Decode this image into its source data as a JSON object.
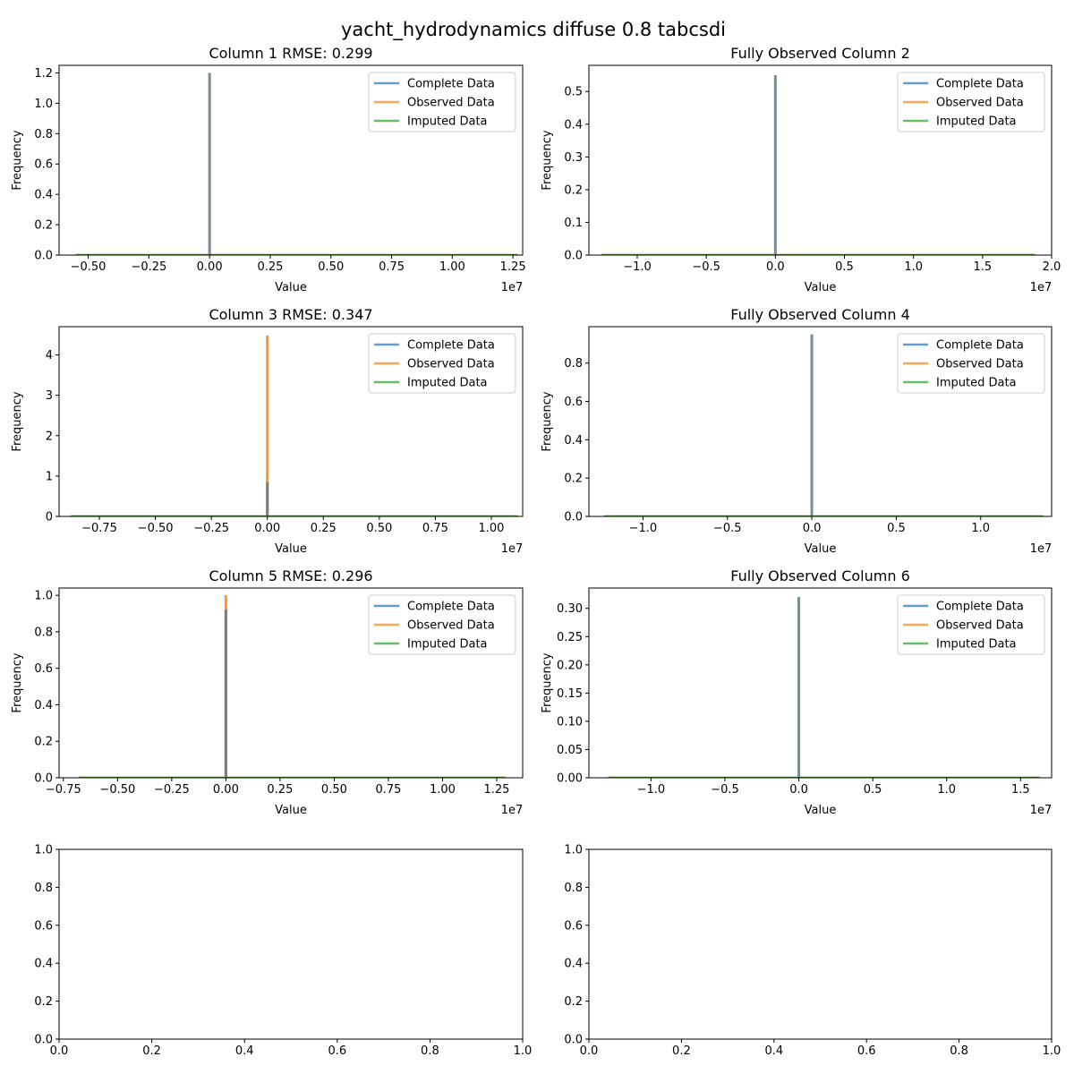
{
  "figure": {
    "suptitle": "yacht_hydrodynamics diffuse 0.8 tabcsdi"
  },
  "colors": {
    "complete": "#1f77b4",
    "observed": "#ff7f0e",
    "imputed": "#2ca02c",
    "overlap": "#5b7b86"
  },
  "chart_data": [
    {
      "type": "bar",
      "title": "Column 1 RMSE: 0.299",
      "xlabel": "Value",
      "ylabel": "Frequency",
      "x_offset_label": "1e7",
      "xlim": [
        -0.62,
        1.29
      ],
      "ylim": [
        0,
        1.25
      ],
      "xticks": [
        -0.5,
        -0.25,
        0,
        0.25,
        0.5,
        0.75,
        1.0,
        1.25
      ],
      "xtick_labels": [
        "−0.50",
        "−0.25",
        "0.00",
        "0.25",
        "0.50",
        "0.75",
        "1.00",
        "1.25"
      ],
      "yticks": [
        0,
        0.2,
        0.4,
        0.6,
        0.8,
        1.0,
        1.2
      ],
      "ytick_labels": [
        "0.0",
        "0.2",
        "0.4",
        "0.6",
        "0.8",
        "1.0",
        "1.2"
      ],
      "baseline": [
        -0.55,
        1.27
      ],
      "legend": {
        "position": "top-right",
        "entries": [
          "Complete Data",
          "Observed Data",
          "Imputed Data"
        ]
      },
      "series": [
        {
          "name": "Complete Data",
          "x": 0.0,
          "value": 1.2
        },
        {
          "name": "Observed Data",
          "x": 0.0,
          "value": 1.2
        },
        {
          "name": "Imputed Data",
          "x": 0.0,
          "value": 0.0
        }
      ]
    },
    {
      "type": "bar",
      "title": "Fully Observed Column 2",
      "xlabel": "Value",
      "ylabel": "Frequency",
      "x_offset_label": "1e7",
      "xlim": [
        -1.35,
        2.0
      ],
      "ylim": [
        0,
        0.58
      ],
      "xticks": [
        -1.0,
        -0.5,
        0,
        0.5,
        1.0,
        1.5,
        2.0
      ],
      "xtick_labels": [
        "−1.0",
        "−0.5",
        "0.0",
        "0.5",
        "1.0",
        "1.5",
        "2.0"
      ],
      "yticks": [
        0,
        0.1,
        0.2,
        0.3,
        0.4,
        0.5
      ],
      "ytick_labels": [
        "0.0",
        "0.1",
        "0.2",
        "0.3",
        "0.4",
        "0.5"
      ],
      "baseline": [
        -1.26,
        1.88
      ],
      "legend": {
        "position": "top-right",
        "entries": [
          "Complete Data",
          "Observed Data",
          "Imputed Data"
        ]
      },
      "series": [
        {
          "name": "Complete Data",
          "x": 0.0,
          "value": 0.55
        },
        {
          "name": "Observed Data",
          "x": 0.0,
          "value": 0.55
        },
        {
          "name": "Imputed Data",
          "x": 0.0,
          "value": 0.0
        }
      ]
    },
    {
      "type": "bar",
      "title": "Column 3 RMSE: 0.347",
      "xlabel": "Value",
      "ylabel": "Frequency",
      "x_offset_label": "1e7",
      "xlim": [
        -0.93,
        1.14
      ],
      "ylim": [
        0,
        4.7
      ],
      "xticks": [
        -0.75,
        -0.5,
        -0.25,
        0,
        0.25,
        0.5,
        0.75,
        1.0
      ],
      "xtick_labels": [
        "−0.75",
        "−0.50",
        "−0.25",
        "0.00",
        "0.25",
        "0.50",
        "0.75",
        "1.00"
      ],
      "yticks": [
        0,
        1,
        2,
        3,
        4
      ],
      "ytick_labels": [
        "0",
        "1",
        "2",
        "3",
        "4"
      ],
      "baseline": [
        -0.88,
        1.12
      ],
      "legend": {
        "position": "top-right",
        "entries": [
          "Complete Data",
          "Observed Data",
          "Imputed Data"
        ]
      },
      "series": [
        {
          "name": "Complete Data",
          "x": 0.0,
          "value": 0.85
        },
        {
          "name": "Observed Data",
          "x": 0.0,
          "value": 4.48
        },
        {
          "name": "Imputed Data",
          "x": 0.0,
          "value": 0.0
        }
      ]
    },
    {
      "type": "bar",
      "title": "Fully Observed Column 4",
      "xlabel": "Value",
      "ylabel": "Frequency",
      "x_offset_label": "1e7",
      "xlim": [
        -1.32,
        1.42
      ],
      "ylim": [
        0,
        0.99
      ],
      "xticks": [
        -1.0,
        -0.5,
        0,
        0.5,
        1.0
      ],
      "xtick_labels": [
        "−1.0",
        "−0.5",
        "0.0",
        "0.5",
        "1.0"
      ],
      "yticks": [
        0,
        0.2,
        0.4,
        0.6,
        0.8
      ],
      "ytick_labels": [
        "0.0",
        "0.2",
        "0.4",
        "0.6",
        "0.8"
      ],
      "baseline": [
        -1.23,
        1.37
      ],
      "legend": {
        "position": "top-right",
        "entries": [
          "Complete Data",
          "Observed Data",
          "Imputed Data"
        ]
      },
      "series": [
        {
          "name": "Complete Data",
          "x": 0.0,
          "value": 0.95
        },
        {
          "name": "Observed Data",
          "x": 0.0,
          "value": 0.95
        },
        {
          "name": "Imputed Data",
          "x": 0.0,
          "value": 0.0
        }
      ]
    },
    {
      "type": "bar",
      "title": "Column 5 RMSE: 0.296",
      "xlabel": "Value",
      "ylabel": "Frequency",
      "x_offset_label": "1e7",
      "xlim": [
        -0.77,
        1.37
      ],
      "ylim": [
        0,
        1.04
      ],
      "xticks": [
        -0.75,
        -0.5,
        -0.25,
        0,
        0.25,
        0.5,
        0.75,
        1.0,
        1.25
      ],
      "xtick_labels": [
        "−0.75",
        "−0.50",
        "−0.25",
        "0.00",
        "0.25",
        "0.50",
        "0.75",
        "1.00",
        "1.25"
      ],
      "yticks": [
        0,
        0.2,
        0.4,
        0.6,
        0.8,
        1.0
      ],
      "ytick_labels": [
        "0.0",
        "0.2",
        "0.4",
        "0.6",
        "0.8",
        "1.0"
      ],
      "baseline": [
        -0.68,
        1.29
      ],
      "legend": {
        "position": "top-right",
        "entries": [
          "Complete Data",
          "Observed Data",
          "Imputed Data"
        ]
      },
      "series": [
        {
          "name": "Complete Data",
          "x": 0.0,
          "value": 0.92
        },
        {
          "name": "Observed Data",
          "x": 0.0,
          "value": 1.0
        },
        {
          "name": "Imputed Data",
          "x": 0.0,
          "value": 0.0
        }
      ]
    },
    {
      "type": "bar",
      "title": "Fully Observed Column 6",
      "xlabel": "Value",
      "ylabel": "Frequency",
      "x_offset_label": "1e7",
      "xlim": [
        -1.42,
        1.71
      ],
      "ylim": [
        0,
        0.336
      ],
      "xticks": [
        -1.0,
        -0.5,
        0,
        0.5,
        1.0,
        1.5
      ],
      "xtick_labels": [
        "−1.0",
        "−0.5",
        "0.0",
        "0.5",
        "1.0",
        "1.5"
      ],
      "yticks": [
        0,
        0.05,
        0.1,
        0.15,
        0.2,
        0.25,
        0.3
      ],
      "ytick_labels": [
        "0.00",
        "0.05",
        "0.10",
        "0.15",
        "0.20",
        "0.25",
        "0.30"
      ],
      "baseline": [
        -1.29,
        1.63
      ],
      "legend": {
        "position": "top-right",
        "entries": [
          "Complete Data",
          "Observed Data",
          "Imputed Data"
        ]
      },
      "series": [
        {
          "name": "Complete Data",
          "x": 0.0,
          "value": 0.32
        },
        {
          "name": "Observed Data",
          "x": 0.0,
          "value": 0.32
        },
        {
          "name": "Imputed Data",
          "x": 0.0,
          "value": 0.0
        }
      ]
    },
    {
      "type": "empty",
      "xlim": [
        0,
        1
      ],
      "ylim": [
        0,
        1
      ],
      "xticks": [
        0,
        0.2,
        0.4,
        0.6,
        0.8,
        1.0
      ],
      "xtick_labels": [
        "0.0",
        "0.2",
        "0.4",
        "0.6",
        "0.8",
        "1.0"
      ],
      "yticks": [
        0,
        0.2,
        0.4,
        0.6,
        0.8,
        1.0
      ],
      "ytick_labels": [
        "0.0",
        "0.2",
        "0.4",
        "0.6",
        "0.8",
        "1.0"
      ]
    },
    {
      "type": "empty",
      "xlim": [
        0,
        1
      ],
      "ylim": [
        0,
        1
      ],
      "xticks": [
        0,
        0.2,
        0.4,
        0.6,
        0.8,
        1.0
      ],
      "xtick_labels": [
        "0.0",
        "0.2",
        "0.4",
        "0.6",
        "0.8",
        "1.0"
      ],
      "yticks": [
        0,
        0.2,
        0.4,
        0.6,
        0.8,
        1.0
      ],
      "ytick_labels": [
        "0.0",
        "0.2",
        "0.4",
        "0.6",
        "0.8",
        "1.0"
      ]
    }
  ]
}
